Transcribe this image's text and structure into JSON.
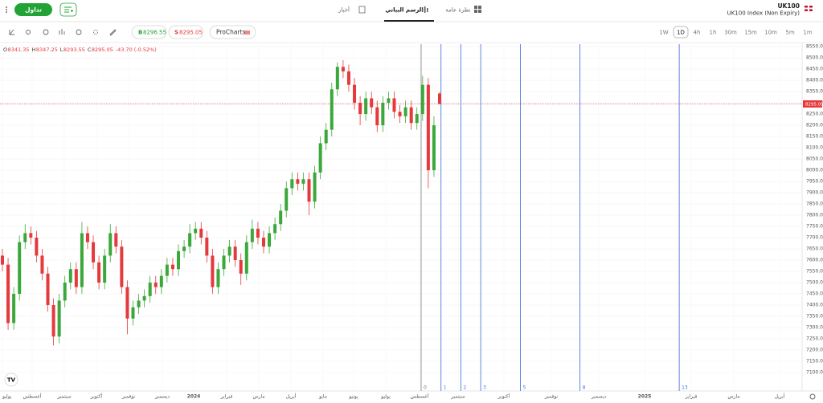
{
  "header": {
    "trade_button": "تداول",
    "tabs": [
      "أخبار",
      "الرسم البياني",
      "نظرة عامة"
    ],
    "active_tab": 1,
    "symbol": "UK100",
    "instrument": "UK100 Index (Non Expiry)"
  },
  "toolbar": {
    "buy": {
      "label": "B",
      "price": "8296.55"
    },
    "sell": {
      "label": "S",
      "price": "8295.05"
    },
    "prochart": "ProCharts",
    "timeframes": [
      "1W",
      "1D",
      "4h",
      "1h",
      "30m",
      "15m",
      "10m",
      "5m",
      "1m"
    ],
    "active_timeframe": 1
  },
  "chart_data": {
    "type": "candlestick",
    "ohlc_labels": [
      "O",
      "H",
      "L",
      "C"
    ],
    "change": "-43.70 (-0.52%)",
    "up_color": "#3aa83a",
    "down_color": "#e5393b",
    "ylim": [
      7025,
      8561
    ],
    "yticks": [
      {
        "value": 8550,
        "label": "8550.00"
      },
      {
        "value": 8500,
        "label": "8500.00"
      },
      {
        "value": 8450,
        "label": "8450.00"
      },
      {
        "value": 8400,
        "label": "8400.00"
      },
      {
        "value": 8350,
        "label": "8350.00"
      },
      {
        "value": 8300,
        "label": "8300.00"
      },
      {
        "value": 8250,
        "label": "8250.00"
      },
      {
        "value": 8200,
        "label": "8200.00"
      },
      {
        "value": 8150,
        "label": "8150.00"
      },
      {
        "value": 8100,
        "label": "8100.00"
      },
      {
        "value": 8050,
        "label": "8050.00"
      },
      {
        "value": 8000,
        "label": "8000.00"
      },
      {
        "value": 7950,
        "label": "7950.00"
      },
      {
        "value": 7900,
        "label": "7900.00"
      },
      {
        "value": 7850,
        "label": "7850.00"
      },
      {
        "value": 7800,
        "label": "7800.00"
      },
      {
        "value": 7750,
        "label": "7750.00"
      },
      {
        "value": 7700,
        "label": "7700.00"
      },
      {
        "value": 7650,
        "label": "7650.00"
      },
      {
        "value": 7600,
        "label": "7600.00"
      },
      {
        "value": 7550,
        "label": "7550.00"
      },
      {
        "value": 7500,
        "label": "7500.00"
      },
      {
        "value": 7450,
        "label": "7450.00"
      },
      {
        "value": 7400,
        "label": "7400.00"
      },
      {
        "value": 7350,
        "label": "7350.00"
      },
      {
        "value": 7300,
        "label": "7300.00"
      },
      {
        "value": 7250,
        "label": "7250.00"
      },
      {
        "value": 7200,
        "label": "7200.00"
      },
      {
        "value": 7150,
        "label": "7150.00"
      },
      {
        "value": 7100,
        "label": "7100.00"
      }
    ],
    "x_labels": [
      "يوليو",
      "أغسطس",
      "سبتمبر",
      "أكتوبر",
      "نوفمبر",
      "ديسمبر",
      "2024",
      "فبراير",
      "مارس",
      "أبريل",
      "مايو",
      "يونيو",
      "يوليو",
      "أغسطس",
      "سبتمبر",
      "أكتوبر",
      "نوفمبر",
      "ديسمبر",
      "2025",
      "فبراير",
      "مارس",
      "أبريل"
    ],
    "fib_zones": [
      0,
      1,
      2,
      3,
      5,
      8,
      13
    ],
    "open": [
      7620,
      7580,
      7320,
      7450,
      7680,
      7720,
      7700,
      7620,
      7540,
      7400,
      7260,
      7420,
      7500,
      7560,
      7480,
      7720,
      7680,
      7590,
      7500,
      7620,
      7720,
      7660,
      7480,
      7340,
      7390,
      7420,
      7440,
      7500,
      7480,
      7530,
      7580,
      7560,
      7640,
      7660,
      7720,
      7740,
      7700,
      7620,
      7480,
      7560,
      7620,
      7660,
      7600,
      7540,
      7680,
      7740,
      7700,
      7660,
      7720,
      7760,
      7820,
      7920,
      7960,
      7940,
      7960,
      7860,
      7990,
      8120,
      8180,
      8360,
      8460,
      8440,
      8380,
      8300,
      8250,
      8320,
      8280,
      8200,
      8300,
      8320,
      8260,
      8240,
      8280,
      8210,
      8250,
      8380,
      8000,
      8341.35
    ],
    "high": [
      7650,
      7610,
      7480,
      7710,
      7760,
      7750,
      7730,
      7650,
      7570,
      7430,
      7450,
      7530,
      7590,
      7590,
      7770,
      7750,
      7710,
      7620,
      7650,
      7760,
      7750,
      7690,
      7510,
      7420,
      7450,
      7470,
      7530,
      7530,
      7560,
      7610,
      7610,
      7670,
      7690,
      7760,
      7770,
      7770,
      7730,
      7650,
      7590,
      7650,
      7690,
      7690,
      7630,
      7710,
      7780,
      7770,
      7730,
      7750,
      7790,
      7850,
      7950,
      7990,
      7990,
      7990,
      7990,
      8020,
      8150,
      8210,
      8390,
      8480,
      8490,
      8470,
      8410,
      8330,
      8350,
      8350,
      8310,
      8330,
      8350,
      8350,
      8290,
      8310,
      8310,
      8280,
      8420,
      8410,
      8240,
      8347.25
    ],
    "low": [
      7550,
      7290,
      7290,
      7420,
      7650,
      7670,
      7590,
      7510,
      7370,
      7220,
      7230,
      7390,
      7470,
      7450,
      7450,
      7650,
      7560,
      7470,
      7470,
      7590,
      7630,
      7450,
      7270,
      7310,
      7360,
      7390,
      7410,
      7450,
      7450,
      7500,
      7530,
      7530,
      7610,
      7630,
      7690,
      7670,
      7590,
      7450,
      7450,
      7530,
      7590,
      7570,
      7490,
      7510,
      7650,
      7670,
      7630,
      7630,
      7690,
      7730,
      7790,
      7890,
      7910,
      7910,
      7800,
      7830,
      7960,
      8090,
      8150,
      8330,
      8410,
      8350,
      8270,
      8200,
      8220,
      8250,
      8170,
      8170,
      8270,
      8230,
      8210,
      8210,
      8180,
      8180,
      8220,
      7920,
      7970,
      8293.55
    ],
    "close": [
      7580,
      7320,
      7450,
      7680,
      7720,
      7700,
      7620,
      7540,
      7400,
      7260,
      7420,
      7500,
      7560,
      7480,
      7720,
      7680,
      7590,
      7500,
      7620,
      7720,
      7660,
      7480,
      7340,
      7390,
      7420,
      7440,
      7500,
      7480,
      7530,
      7580,
      7560,
      7640,
      7660,
      7720,
      7740,
      7700,
      7620,
      7480,
      7560,
      7620,
      7660,
      7600,
      7540,
      7680,
      7740,
      7700,
      7660,
      7720,
      7760,
      7820,
      7920,
      7960,
      7940,
      7960,
      7860,
      7990,
      8120,
      8180,
      8360,
      8460,
      8440,
      8380,
      8300,
      8250,
      8320,
      8280,
      8200,
      8300,
      8320,
      8260,
      8240,
      8280,
      8210,
      8250,
      8380,
      8000,
      8200,
      8295.05
    ]
  }
}
